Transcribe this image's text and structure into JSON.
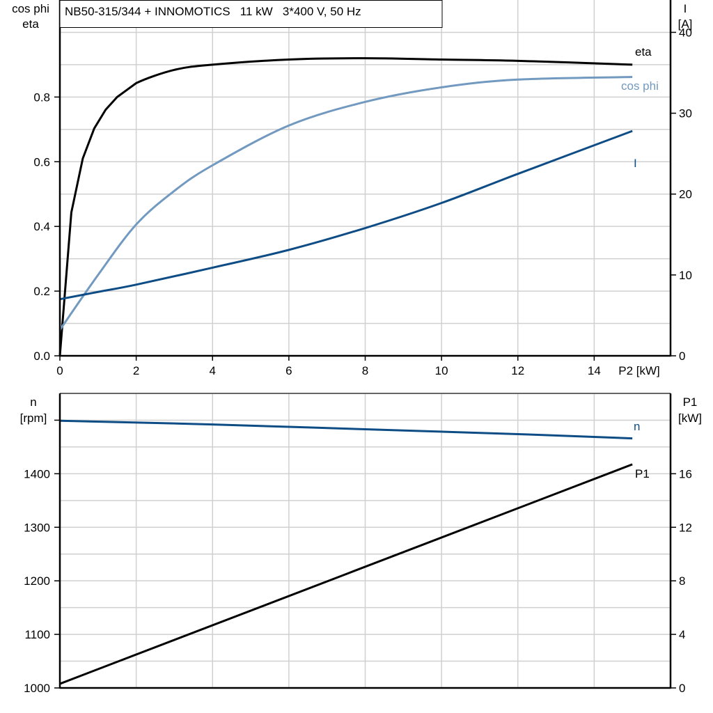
{
  "colors": {
    "eta": "#000000",
    "cos_phi": "#7299bf",
    "current": "#0e4c85",
    "speed": "#0e4c85",
    "p1": "#000000",
    "grid": "#d0d0d0"
  },
  "chart_data": [
    {
      "type": "line",
      "title": "NB50-315/344 + INNOMOTICS   11 kW   3*400 V, 50 Hz",
      "xlabel": "P2 [kW]",
      "ylabel_left": [
        "cos phi",
        "eta"
      ],
      "ylabel_right": [
        "I",
        "[A]"
      ],
      "xlim": [
        0,
        16
      ],
      "ylim_left": [
        0,
        1.1
      ],
      "ylim_right": [
        0,
        44
      ],
      "grid": true,
      "x_ticks": [
        "0",
        "2",
        "4",
        "6",
        "8",
        "10",
        "12",
        "14"
      ],
      "y_left_ticks": [
        "0.0",
        "0.2",
        "0.4",
        "0.6",
        "0.8"
      ],
      "y_right_ticks": [
        "0",
        "10",
        "20",
        "30",
        "40"
      ],
      "series": [
        {
          "name": "eta",
          "axis": "left",
          "color_key": "eta",
          "x": [
            0,
            0.3,
            0.6,
            0.9,
            1.2,
            1.5,
            2,
            3,
            4,
            6,
            8,
            10,
            12,
            15
          ],
          "y": [
            0,
            0.443,
            0.61,
            0.703,
            0.761,
            0.8,
            0.843,
            0.884,
            0.9,
            0.916,
            0.92,
            0.916,
            0.912,
            0.9
          ]
        },
        {
          "name": "cos phi",
          "axis": "left",
          "color_key": "cos_phi",
          "x": [
            0,
            1,
            2,
            3,
            4,
            6,
            8,
            10,
            12,
            15
          ],
          "y": [
            0.08,
            0.25,
            0.406,
            0.51,
            0.589,
            0.712,
            0.785,
            0.83,
            0.854,
            0.862
          ]
        },
        {
          "name": "I",
          "axis": "right",
          "color_key": "current",
          "x": [
            0,
            1,
            2,
            4,
            6,
            8,
            10,
            12,
            15
          ],
          "y": [
            7.0,
            7.9,
            8.8,
            10.9,
            13.1,
            15.8,
            18.9,
            22.5,
            27.8
          ]
        }
      ]
    },
    {
      "type": "line",
      "ylabel_left": [
        "n",
        "[rpm]"
      ],
      "ylabel_right": [
        "P1",
        "[kW]"
      ],
      "xlim": [
        0,
        16
      ],
      "ylim_left": [
        1000,
        1550
      ],
      "ylim_right": [
        0,
        22
      ],
      "grid": true,
      "y_left_ticks": [
        "1000",
        "1100",
        "1200",
        "1300",
        "1400"
      ],
      "y_right_ticks": [
        "0",
        "4",
        "8",
        "12",
        "16"
      ],
      "series": [
        {
          "name": "n",
          "axis": "left",
          "color_key": "speed",
          "x": [
            0,
            4,
            8,
            12,
            15
          ],
          "y": [
            1499,
            1492,
            1483,
            1474,
            1466
          ]
        },
        {
          "name": "P1",
          "axis": "right",
          "color_key": "p1",
          "x": [
            0,
            15
          ],
          "y": [
            0.31,
            16.7
          ]
        }
      ]
    }
  ]
}
